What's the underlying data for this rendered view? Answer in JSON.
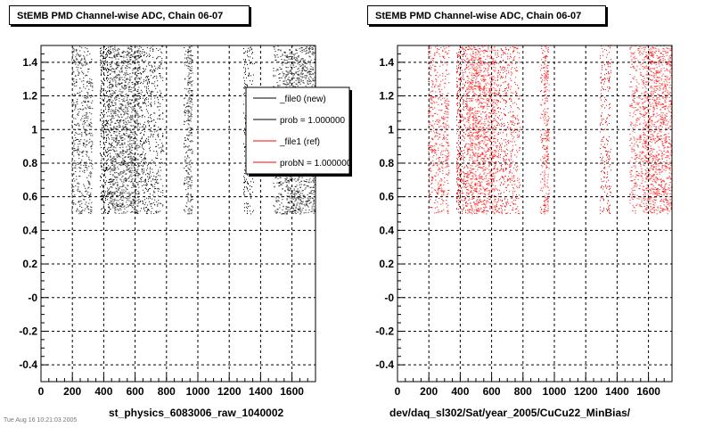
{
  "chart_data": [
    {
      "type": "scatter",
      "title": "StEMB PMD Channel-wise ADC, Chain 06-07",
      "xlabel": "st_physics_6083006_raw_1040002",
      "ylabel": "",
      "xlim": [
        0,
        1750
      ],
      "ylim": [
        -0.5,
        1.5
      ],
      "xticks": [
        0,
        200,
        400,
        600,
        800,
        1000,
        1200,
        1400,
        1600
      ],
      "yticks": [
        "1.4",
        "1.2",
        "1",
        "0.8",
        "0.6",
        "0.4",
        "0.2",
        "-0",
        "-0.2",
        "-0.4"
      ],
      "grid": true,
      "point_color": "#000000",
      "y_band": [
        0.5,
        1.5
      ],
      "channel_bands": [
        {
          "x": [
            195,
            330
          ],
          "density": 0.55
        },
        {
          "x": [
            375,
            440
          ],
          "density": 0.85
        },
        {
          "x": [
            440,
            630
          ],
          "density": 0.95
        },
        {
          "x": [
            630,
            700
          ],
          "density": 0.6
        },
        {
          "x": [
            700,
            780
          ],
          "density": 0.5
        },
        {
          "x": [
            910,
            935
          ],
          "density": 0.5
        },
        {
          "x": [
            935,
            965
          ],
          "density": 1.0
        },
        {
          "x": [
            1290,
            1360
          ],
          "density": 0.5
        },
        {
          "x": [
            1480,
            1560
          ],
          "density": 0.5
        },
        {
          "x": [
            1560,
            1750
          ],
          "density": 0.85
        }
      ],
      "legend": {
        "placement": "top-right",
        "entries": [
          {
            "label": "_file0 (new)",
            "color": "#000000"
          },
          {
            "label": "prob = 1.000000",
            "color": "#000000"
          },
          {
            "label": "_file1 (ref)",
            "color": "#ff0000"
          },
          {
            "label": "probN = 1.000000",
            "color": "#ff0000"
          }
        ]
      }
    },
    {
      "type": "scatter",
      "title": "StEMB PMD Channel-wise ADC, Chain 06-07",
      "xlabel": "dev/daq_sl302/Sat/year_2005/CuCu22_MinBias/",
      "ylabel": "",
      "xlim": [
        0,
        1750
      ],
      "ylim": [
        -0.5,
        1.5
      ],
      "xticks": [
        0,
        200,
        400,
        600,
        800,
        1000,
        1200,
        1400,
        1600
      ],
      "yticks": [
        "1.4",
        "1.2",
        "1",
        "0.8",
        "0.6",
        "0.4",
        "0.2",
        "-0",
        "-0.2",
        "-0.4"
      ],
      "grid": true,
      "point_color": "#ff0000",
      "y_band": [
        0.5,
        1.5
      ],
      "channel_bands": [
        {
          "x": [
            195,
            330
          ],
          "density": 0.55
        },
        {
          "x": [
            375,
            440
          ],
          "density": 0.85
        },
        {
          "x": [
            440,
            630
          ],
          "density": 0.95
        },
        {
          "x": [
            630,
            700
          ],
          "density": 0.6
        },
        {
          "x": [
            700,
            780
          ],
          "density": 0.5
        },
        {
          "x": [
            910,
            935
          ],
          "density": 0.5
        },
        {
          "x": [
            935,
            965
          ],
          "density": 1.0
        },
        {
          "x": [
            1290,
            1360
          ],
          "density": 0.5
        },
        {
          "x": [
            1480,
            1560
          ],
          "density": 0.5
        },
        {
          "x": [
            1560,
            1750
          ],
          "density": 0.85
        }
      ]
    }
  ],
  "footnote": "Tue Aug 16 10:21:03 2005"
}
